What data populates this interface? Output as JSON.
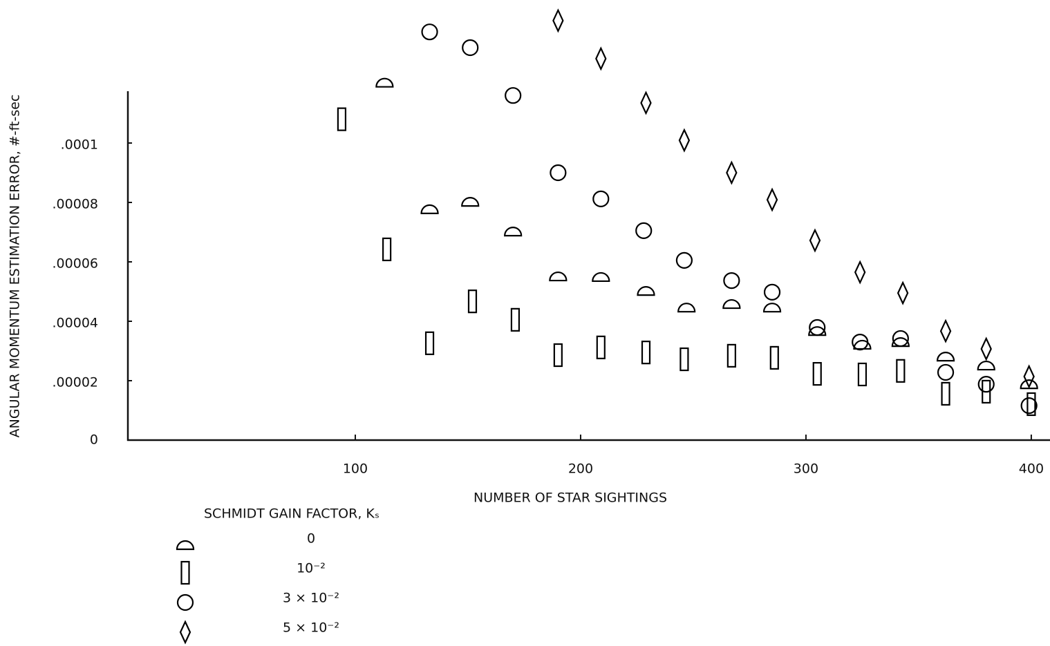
{
  "chart_data": {
    "type": "scatter",
    "xlabel": "NUMBER OF STAR SIGHTINGS",
    "ylabel": "ANGULAR MOMENTUM ESTIMATION ERROR, #-ft-sec",
    "legend_title": "SCHMIDT GAIN FACTOR, Kₛ",
    "legend": "lower left",
    "xlim": [
      0,
      408
    ],
    "ylim": [
      0,
      0.000145
    ],
    "xticks": [
      100,
      200,
      300,
      400
    ],
    "yticks": [
      0,
      {
        "value": 2e-05,
        "label": ".00002"
      },
      {
        "value": 4e-05,
        "label": ".00004"
      },
      {
        "value": 6e-05,
        "label": ".00006"
      },
      {
        "value": 8e-05,
        "label": ".00008"
      },
      {
        "value": 0.0001,
        "label": ".0001"
      }
    ],
    "grid": false,
    "series": [
      {
        "name": "0",
        "color": "#000000",
        "marker": "half-circle",
        "x": [
          113,
          133,
          151,
          170,
          190,
          209,
          229,
          247,
          267,
          285,
          305,
          325,
          342,
          362,
          380,
          399
        ],
        "y": [
          0.000121,
          7.84e-05,
          8.09e-05,
          7.09e-05,
          5.58e-05,
          5.56e-05,
          5.09e-05,
          4.53e-05,
          4.65e-05,
          4.53e-05,
          3.74e-05,
          3.28e-05,
          3.37e-05,
          2.88e-05,
          2.58e-05,
          1.95e-05
        ]
      },
      {
        "name": "10⁻²",
        "color": "#000000",
        "marker": "bar",
        "x": [
          94,
          114,
          133,
          152,
          171,
          190,
          209,
          229,
          246,
          267,
          286,
          305,
          325,
          342,
          362,
          380,
          400
        ],
        "y": [
          0.000108,
          6.42e-05,
          3.26e-05,
          4.67e-05,
          4.05e-05,
          2.86e-05,
          3.12e-05,
          2.95e-05,
          2.72e-05,
          2.84e-05,
          2.77e-05,
          2.23e-05,
          2.21e-05,
          2.33e-05,
          1.56e-05,
          1.63e-05,
          1.21e-05
        ]
      },
      {
        "name": "3 × 10⁻²",
        "color": "#000000",
        "marker": "circle",
        "x": [
          133,
          151,
          170,
          190,
          209,
          228,
          246,
          267,
          285,
          305,
          324,
          342,
          362,
          380,
          399
        ],
        "y": [
          0.0001374,
          0.0001321,
          0.000116,
          9e-05,
          8.12e-05,
          7.05e-05,
          6.05e-05,
          5.37e-05,
          4.98e-05,
          3.79e-05,
          3.3e-05,
          3.42e-05,
          2.28e-05,
          1.88e-05,
          1.16e-05
        ]
      },
      {
        "name": "5 × 10⁻²",
        "color": "#000000",
        "marker": "diamond",
        "x": [
          190,
          209,
          229,
          246,
          267,
          285,
          304,
          324,
          343,
          362,
          380,
          399
        ],
        "y": [
          0.0001412,
          0.0001284,
          0.0001135,
          0.0001009,
          9e-05,
          8.09e-05,
          6.72e-05,
          5.65e-05,
          4.95e-05,
          3.67e-05,
          3.07e-05,
          2.14e-05
        ]
      }
    ]
  }
}
